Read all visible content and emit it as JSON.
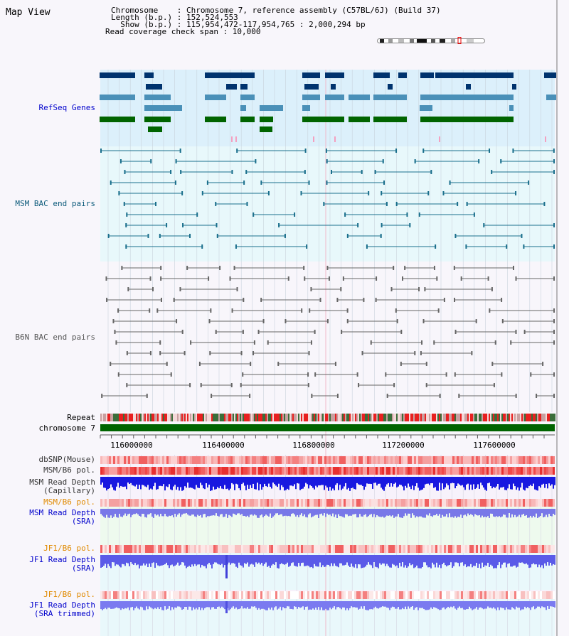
{
  "app": {
    "title": "Map View"
  },
  "info": {
    "chromosome_line": "Chromosome    : Chromosome 7, reference assembly (C57BL/6J) (Build 37)",
    "length_line": "Length (b.p.) : 152,524,553",
    "show_line": "  Show (b.p.) : 115,954,472-117,954,765 : 2,000,294 bp",
    "coverage_line": "Read coverage check span : 10,000"
  },
  "tracks": {
    "refseq": {
      "label": "RefSeq Genes",
      "color": "#0000cc"
    },
    "msm_bac": {
      "label": "MSM BAC end pairs",
      "color": "#0b5a7a"
    },
    "b6n_bac": {
      "label": "B6N BAC end pairs",
      "color": "#555555"
    },
    "repeat": {
      "label": "Repeat",
      "color": "#000000"
    },
    "chromosome": {
      "label": "chromosome 7",
      "color": "#000000"
    },
    "dbsnp": {
      "label": "dbSNP(Mouse)",
      "color": "#333333"
    },
    "msm_b6_pol": {
      "label": "MSM/B6 pol.",
      "color": "#333333"
    },
    "msm_depth_cap": {
      "label": "MSM Read Depth\n(Capillary)",
      "color": "#333333"
    },
    "msm_b6_pol_2": {
      "label": "MSM/B6 pol.",
      "color": "#e08a00"
    },
    "msm_depth_sra": {
      "label": "MSM Read Depth\n(SRA)",
      "color": "#0000cc"
    },
    "jf1_b6_pol": {
      "label": "JF1/B6 pol.",
      "color": "#e08a00"
    },
    "jf1_depth_sra": {
      "label": "JF1 Read Depth\n(SRA)",
      "color": "#0000cc"
    },
    "jf1_b6_pol_2": {
      "label": "JF1/B6 pol.",
      "color": "#e08a00"
    },
    "jf1_depth_trim": {
      "label": "JF1 Read Depth\n(SRA trimmed)",
      "color": "#0000cc"
    }
  },
  "ruler": {
    "ticks": [
      "116000000",
      "116400000",
      "116800000",
      "117200000",
      "117600000"
    ]
  }
}
